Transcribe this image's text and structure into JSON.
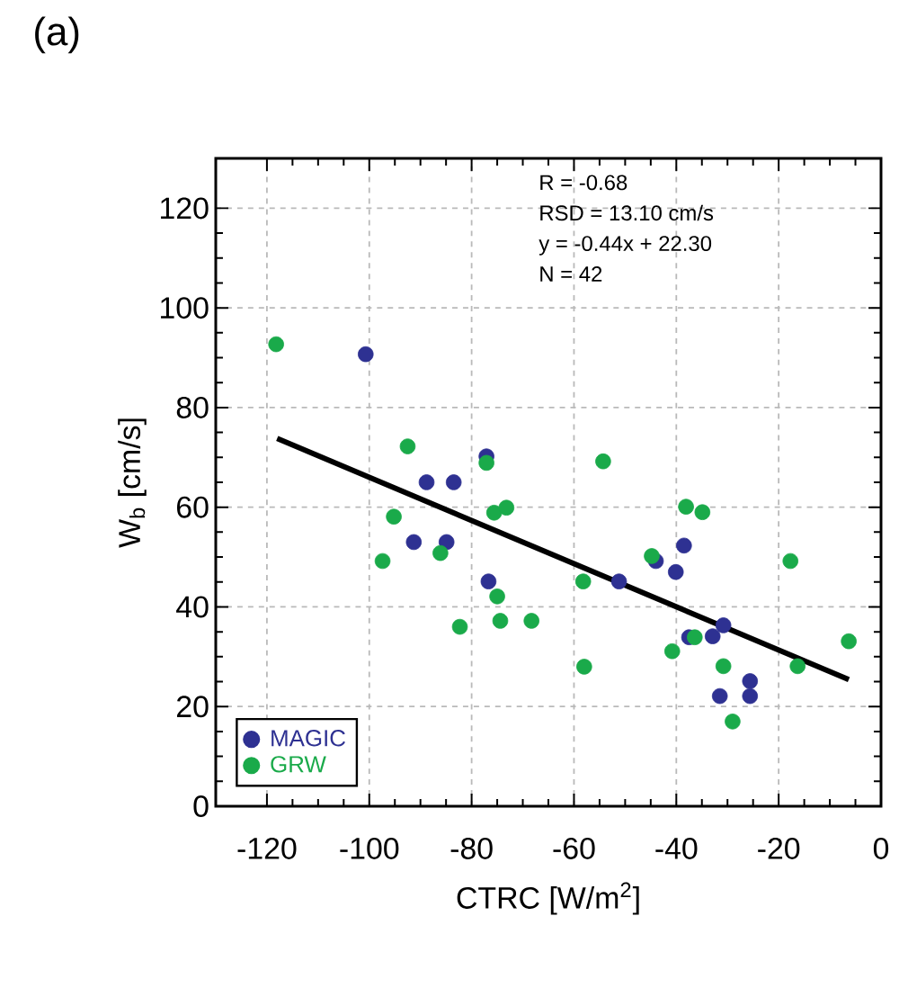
{
  "chart_data": {
    "type": "scatter",
    "title": "(a)",
    "xlabel": "CTRC [W/m$^{2}$]",
    "ylabel": "W$_{b}$ [cm/s]",
    "xlim": [
      -130,
      0
    ],
    "ylim": [
      0,
      130
    ],
    "xticks": [
      -120,
      -100,
      -80,
      -60,
      -40,
      -20,
      0
    ],
    "yticks": [
      0,
      20,
      40,
      60,
      80,
      100,
      120
    ],
    "grid": true,
    "legend": "bottom left",
    "annotations": [
      "R = -0.68",
      "RSD = 13.10 cm/s",
      "y = -0.44x + 22.30",
      "N =  42"
    ],
    "series": [
      {
        "name": "MAGIC",
        "color": "#2e3192",
        "x": [
          -100.7,
          -77.1,
          -88.8,
          -83.5,
          -91.3,
          -84.9,
          -76.7,
          -51.2,
          -44.0,
          -40.1,
          -38.5,
          -37.5,
          -32.9,
          -30.8,
          -31.5,
          -25.6,
          -25.6
        ],
        "values": [
          90.7,
          70.2,
          65.0,
          65.0,
          53.0,
          53.0,
          45.1,
          45.1,
          49.2,
          47.0,
          52.3,
          33.9,
          34.1,
          36.3,
          22.1,
          25.1,
          22.1
        ]
      },
      {
        "name": "GRW",
        "color": "#1aaa4a",
        "x": [
          -118.2,
          -92.5,
          -77.1,
          -75.6,
          -73.2,
          -95.2,
          -86.1,
          -97.4,
          -75.0,
          -82.3,
          -74.4,
          -68.3,
          -58.2,
          -58.0,
          -54.3,
          -44.8,
          -38.1,
          -34.9,
          -40.8,
          -36.4,
          -30.8,
          -29.0,
          -17.7,
          -16.3,
          -6.3
        ],
        "values": [
          92.7,
          72.2,
          68.9,
          58.9,
          59.9,
          58.1,
          50.8,
          49.2,
          42.1,
          36.0,
          37.2,
          37.2,
          45.1,
          28.0,
          69.2,
          50.2,
          60.1,
          59.0,
          31.1,
          33.9,
          28.1,
          17.0,
          49.2,
          28.1,
          33.1
        ]
      },
      {
        "type": "line",
        "marker": "none",
        "color": "#000000",
        "x": [
          -118.0,
          -6.3
        ],
        "values": [
          73.8,
          25.4
        ]
      }
    ]
  }
}
